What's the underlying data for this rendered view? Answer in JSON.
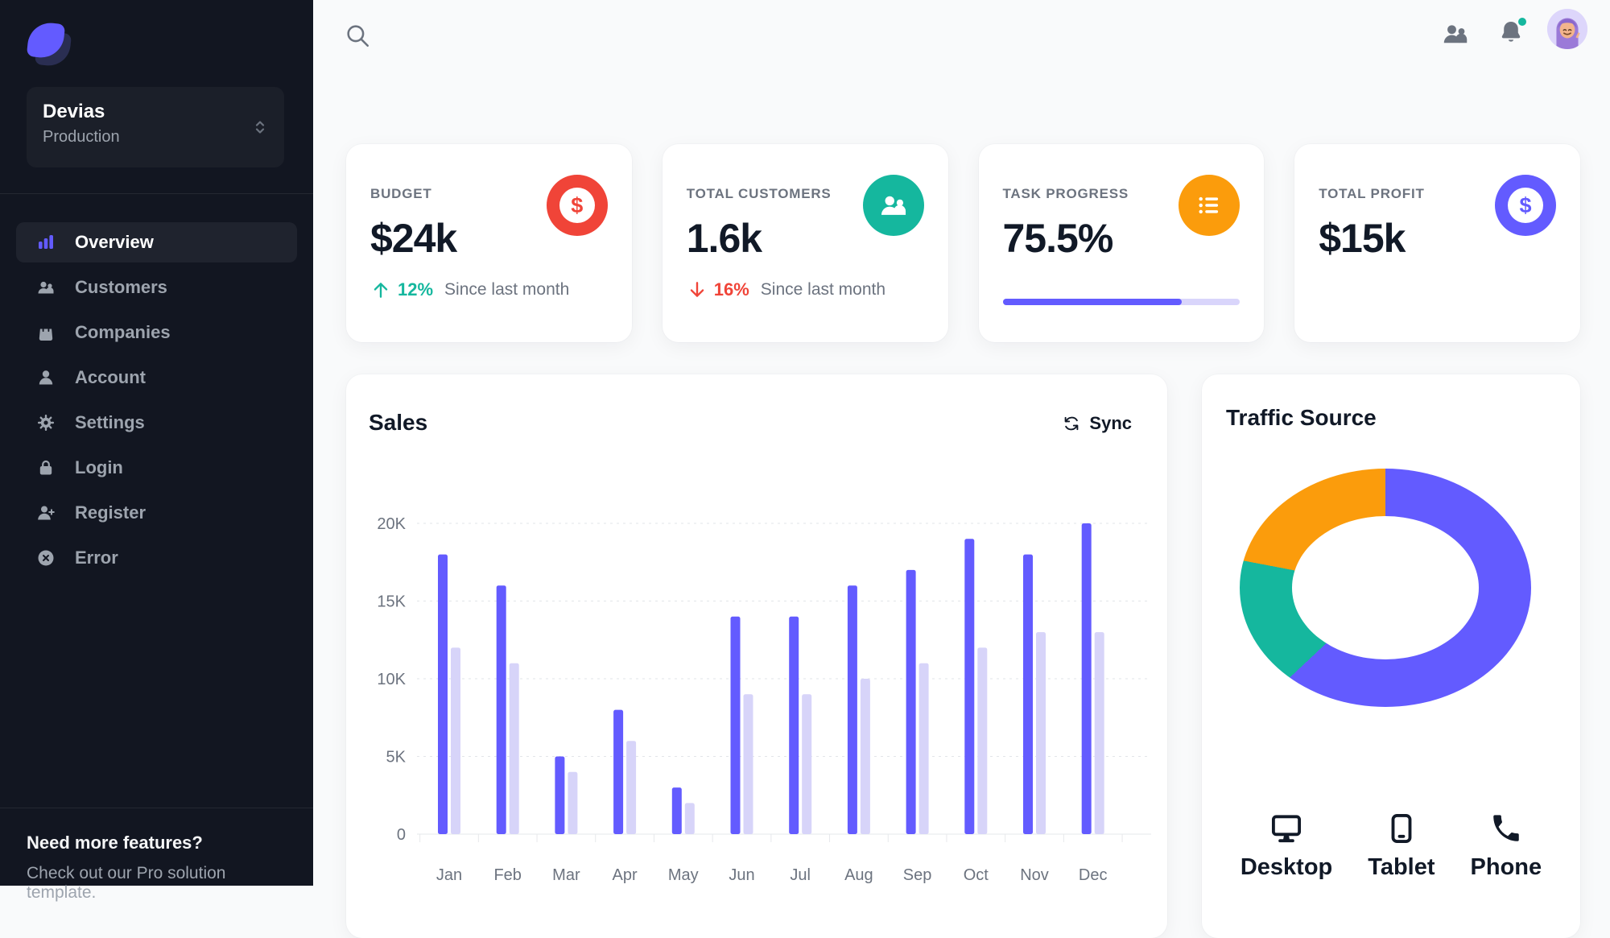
{
  "workspace": {
    "name": "Devias",
    "env": "Production"
  },
  "sidebar": {
    "nav": [
      {
        "id": "overview",
        "label": "Overview",
        "icon": "chart-bar",
        "active": true
      },
      {
        "id": "customers",
        "label": "Customers",
        "icon": "users",
        "active": false
      },
      {
        "id": "companies",
        "label": "Companies",
        "icon": "bag",
        "active": false
      },
      {
        "id": "account",
        "label": "Account",
        "icon": "user",
        "active": false
      },
      {
        "id": "settings",
        "label": "Settings",
        "icon": "gear",
        "active": false
      },
      {
        "id": "login",
        "label": "Login",
        "icon": "lock",
        "active": false
      },
      {
        "id": "register",
        "label": "Register",
        "icon": "user-plus",
        "active": false
      },
      {
        "id": "error",
        "label": "Error",
        "icon": "x-circle",
        "active": false
      }
    ],
    "footer": {
      "title": "Need more features?",
      "subtitle": "Check out our Pro solution template."
    }
  },
  "header": {
    "icons": [
      "search",
      "users-group",
      "bell-with-green-dot",
      "avatar"
    ]
  },
  "stats": [
    {
      "label": "BUDGET",
      "value": "$24k",
      "icon": "dollar",
      "icon_bg": "#f04438",
      "trend": {
        "dir": "up",
        "value": "12%",
        "color": "#15b79e"
      },
      "caption": "Since last month"
    },
    {
      "label": "TOTAL CUSTOMERS",
      "value": "1.6k",
      "icon": "users",
      "icon_bg": "#15b79e",
      "trend": {
        "dir": "down",
        "value": "16%",
        "color": "#f04438"
      },
      "caption": "Since last month"
    },
    {
      "label": "TASK PROGRESS",
      "value": "75.5%",
      "icon": "list",
      "icon_bg": "#fb9c0c",
      "progress": 75.5
    },
    {
      "label": "TOTAL PROFIT",
      "value": "$15k",
      "icon": "dollar",
      "icon_bg": "#635bff"
    }
  ],
  "sales_card": {
    "title": "Sales",
    "sync_label": "Sync"
  },
  "traffic_card": {
    "title": "Traffic Source"
  },
  "chart_data": [
    {
      "type": "bar",
      "title": "Sales",
      "unit": "thousands",
      "categories": [
        "Jan",
        "Feb",
        "Mar",
        "Apr",
        "May",
        "Jun",
        "Jul",
        "Aug",
        "Sep",
        "Oct",
        "Nov",
        "Dec"
      ],
      "series": [
        {
          "name": "series-dark",
          "color": "#635bff",
          "values": [
            18,
            16,
            5,
            8,
            3,
            14,
            14,
            16,
            17,
            19,
            18,
            20
          ]
        },
        {
          "name": "series-light",
          "color": "#d7d4f9",
          "values": [
            12,
            11,
            4,
            6,
            2,
            9,
            9,
            10,
            11,
            12,
            13,
            13
          ]
        }
      ],
      "y_ticks": [
        "0",
        "5K",
        "10K",
        "15K",
        "20K"
      ],
      "ylim": [
        0,
        20
      ],
      "grid": "dashed-horizontal",
      "legend": "none"
    },
    {
      "type": "pie",
      "donut": true,
      "title": "Traffic Source",
      "labels": [
        "Desktop",
        "Tablet",
        "Phone"
      ],
      "values": [
        63,
        15,
        22
      ],
      "colors": [
        "#635bff",
        "#15b79e",
        "#fb9c0c"
      ],
      "legend_position": "bottom",
      "legend_icons": [
        "monitor",
        "tablet",
        "phone"
      ]
    }
  ],
  "colors": {
    "primary": "#635bff",
    "success": "#15b79e",
    "error": "#f04438",
    "warning": "#fb9c0c",
    "sidebar_bg": "#121621",
    "text_muted": "#6c737f",
    "nav_text": "#9da4ae"
  }
}
